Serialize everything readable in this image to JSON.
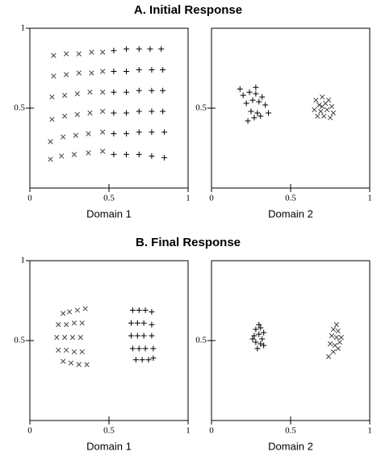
{
  "chart_data": [
    {
      "type": "scatter",
      "title": "A. Initial Response",
      "xlabel": "Domain 1",
      "xlim": [
        0,
        1
      ],
      "ylim": [
        0,
        1
      ],
      "xticks": [
        0,
        0.5,
        1
      ],
      "yticks": [
        0.5,
        1
      ],
      "series": [
        {
          "marker": "x",
          "color": "#444444",
          "x": [
            0.15,
            0.23,
            0.31,
            0.39,
            0.46,
            0.15,
            0.23,
            0.31,
            0.39,
            0.46,
            0.14,
            0.22,
            0.3,
            0.38,
            0.46,
            0.14,
            0.22,
            0.3,
            0.38,
            0.46,
            0.13,
            0.21,
            0.29,
            0.37,
            0.46,
            0.13,
            0.2,
            0.28,
            0.37,
            0.46
          ],
          "y": [
            0.83,
            0.84,
            0.84,
            0.85,
            0.85,
            0.7,
            0.71,
            0.72,
            0.72,
            0.73,
            0.57,
            0.58,
            0.59,
            0.6,
            0.6,
            0.43,
            0.45,
            0.46,
            0.47,
            0.48,
            0.29,
            0.32,
            0.33,
            0.34,
            0.35,
            0.18,
            0.2,
            0.21,
            0.22,
            0.23
          ]
        },
        {
          "marker": "+",
          "color": "#000000",
          "x": [
            0.53,
            0.61,
            0.69,
            0.76,
            0.83,
            0.53,
            0.61,
            0.69,
            0.77,
            0.84,
            0.53,
            0.61,
            0.69,
            0.77,
            0.84,
            0.53,
            0.61,
            0.69,
            0.77,
            0.84,
            0.53,
            0.61,
            0.69,
            0.77,
            0.85,
            0.53,
            0.61,
            0.69,
            0.77,
            0.85
          ],
          "y": [
            0.86,
            0.87,
            0.87,
            0.87,
            0.87,
            0.73,
            0.73,
            0.74,
            0.74,
            0.74,
            0.6,
            0.6,
            0.61,
            0.61,
            0.61,
            0.47,
            0.47,
            0.48,
            0.48,
            0.48,
            0.34,
            0.34,
            0.35,
            0.35,
            0.35,
            0.21,
            0.21,
            0.21,
            0.2,
            0.19
          ]
        }
      ]
    },
    {
      "type": "scatter",
      "xlabel": "Domain 2",
      "xlim": [
        0,
        1
      ],
      "ylim": [
        0,
        1
      ],
      "xticks": [
        0,
        0.5,
        1
      ],
      "yticks": [
        0.5
      ],
      "series": [
        {
          "marker": "+",
          "color": "#000000",
          "x": [
            0.2,
            0.24,
            0.28,
            0.32,
            0.22,
            0.26,
            0.3,
            0.34,
            0.25,
            0.29,
            0.18,
            0.27,
            0.23,
            0.31,
            0.36,
            0.28
          ],
          "y": [
            0.58,
            0.6,
            0.59,
            0.57,
            0.53,
            0.55,
            0.54,
            0.52,
            0.48,
            0.47,
            0.62,
            0.44,
            0.42,
            0.45,
            0.47,
            0.63
          ]
        },
        {
          "marker": "x",
          "color": "#444444",
          "x": [
            0.66,
            0.7,
            0.74,
            0.68,
            0.72,
            0.76,
            0.65,
            0.69,
            0.73,
            0.77,
            0.71,
            0.67,
            0.75,
            0.7
          ],
          "y": [
            0.55,
            0.57,
            0.55,
            0.52,
            0.53,
            0.51,
            0.49,
            0.48,
            0.49,
            0.47,
            0.45,
            0.45,
            0.44,
            0.51
          ]
        }
      ]
    },
    {
      "type": "scatter",
      "title": "B. Final Response",
      "xlabel": "Domain 1",
      "xlim": [
        0,
        1
      ],
      "ylim": [
        0,
        1
      ],
      "xticks": [
        0,
        0.5,
        1
      ],
      "yticks": [
        0.5,
        1
      ],
      "series": [
        {
          "marker": "x",
          "color": "#444444",
          "x": [
            0.21,
            0.25,
            0.3,
            0.35,
            0.18,
            0.23,
            0.28,
            0.33,
            0.17,
            0.22,
            0.27,
            0.32,
            0.18,
            0.23,
            0.28,
            0.33,
            0.21,
            0.26,
            0.31,
            0.36
          ],
          "y": [
            0.67,
            0.68,
            0.69,
            0.7,
            0.6,
            0.6,
            0.61,
            0.61,
            0.52,
            0.52,
            0.52,
            0.52,
            0.44,
            0.44,
            0.43,
            0.43,
            0.37,
            0.36,
            0.35,
            0.35
          ]
        },
        {
          "marker": "+",
          "color": "#000000",
          "x": [
            0.65,
            0.69,
            0.73,
            0.77,
            0.64,
            0.68,
            0.72,
            0.77,
            0.64,
            0.68,
            0.72,
            0.77,
            0.65,
            0.69,
            0.73,
            0.78,
            0.67,
            0.71,
            0.75,
            0.78
          ],
          "y": [
            0.69,
            0.69,
            0.69,
            0.68,
            0.61,
            0.61,
            0.61,
            0.6,
            0.53,
            0.53,
            0.53,
            0.53,
            0.45,
            0.45,
            0.45,
            0.45,
            0.38,
            0.38,
            0.38,
            0.39
          ]
        }
      ]
    },
    {
      "type": "scatter",
      "xlabel": "Domain 2",
      "xlim": [
        0,
        1
      ],
      "ylim": [
        0,
        1
      ],
      "xticks": [
        0,
        0.5,
        1
      ],
      "yticks": [
        0.5
      ],
      "series": [
        {
          "marker": "+",
          "color": "#000000",
          "x": [
            0.28,
            0.31,
            0.33,
            0.27,
            0.3,
            0.32,
            0.28,
            0.31,
            0.29,
            0.26,
            0.33,
            0.3
          ],
          "y": [
            0.57,
            0.58,
            0.55,
            0.53,
            0.54,
            0.51,
            0.49,
            0.48,
            0.45,
            0.51,
            0.47,
            0.6
          ]
        },
        {
          "marker": "x",
          "color": "#444444",
          "x": [
            0.77,
            0.8,
            0.76,
            0.79,
            0.81,
            0.75,
            0.78,
            0.8,
            0.77,
            0.74,
            0.82,
            0.79
          ],
          "y": [
            0.57,
            0.56,
            0.53,
            0.52,
            0.49,
            0.48,
            0.47,
            0.45,
            0.43,
            0.4,
            0.52,
            0.6
          ]
        }
      ]
    }
  ]
}
